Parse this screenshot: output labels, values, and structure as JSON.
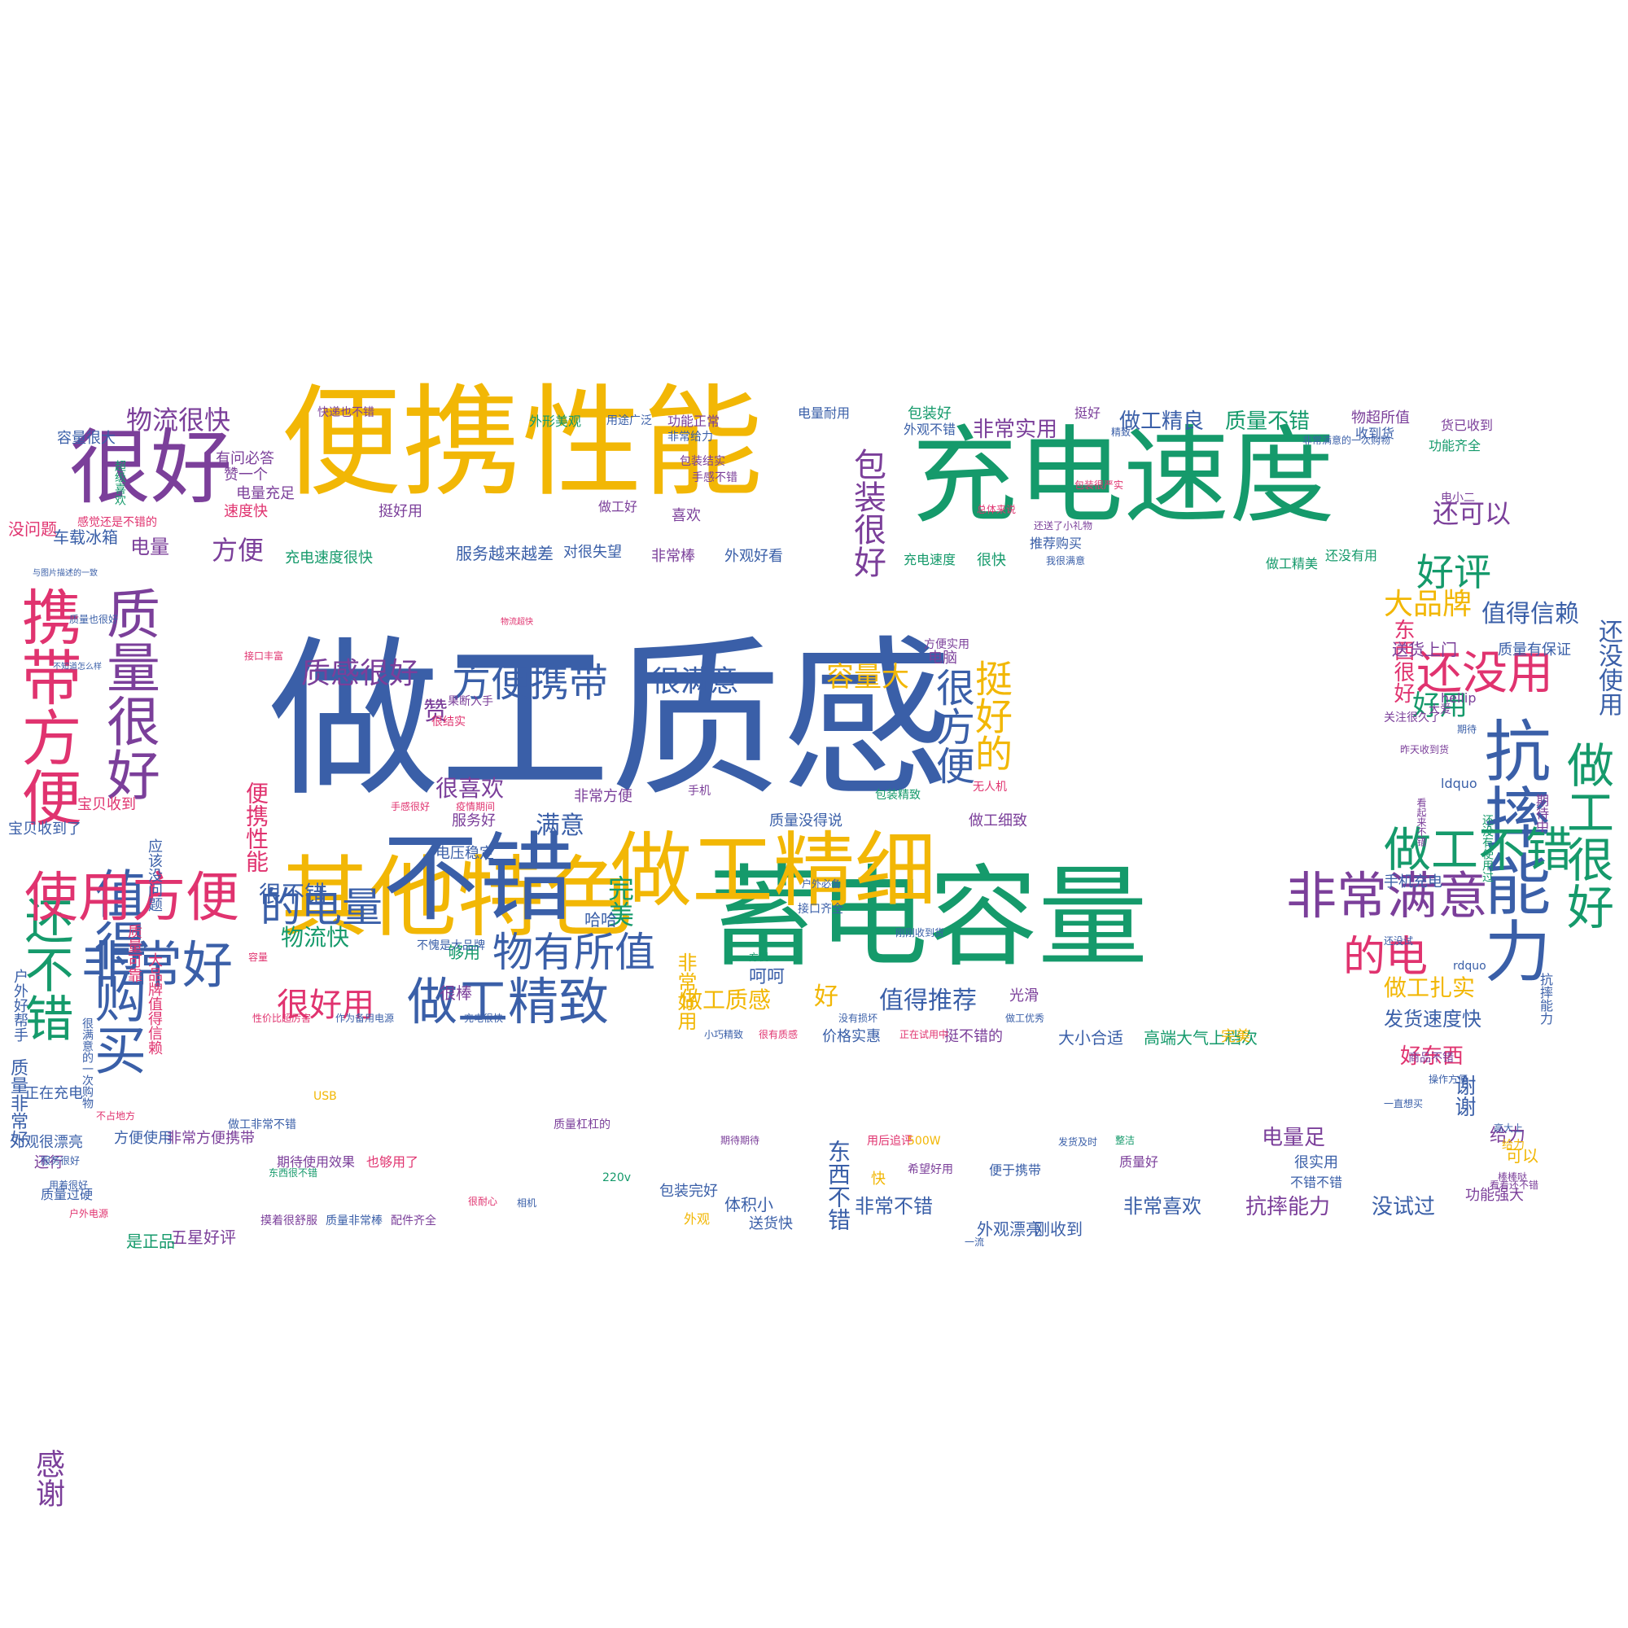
{
  "palette": {
    "yellow": "#f2b705",
    "blue": "#3a5fa8",
    "green": "#159a6b",
    "purple": "#7b3f9a",
    "pink": "#e0336f"
  },
  "words": [
    {
      "text": "做工质感",
      "color": "blue"
    },
    {
      "text": "便携性能",
      "color": "yellow"
    },
    {
      "text": "充电速度",
      "color": "green"
    },
    {
      "text": "蓄电容量",
      "color": "green"
    },
    {
      "text": "其他特色",
      "color": "yellow"
    },
    {
      "text": "不错",
      "color": "blue"
    },
    {
      "text": "做工精细",
      "color": "yellow"
    },
    {
      "text": "抗摔能力",
      "color": "blue"
    },
    {
      "text": "很好",
      "color": "purple"
    },
    {
      "text": "携带方便",
      "color": "pink"
    },
    {
      "text": "质量很好",
      "color": "purple"
    },
    {
      "text": "值得购买",
      "color": "blue"
    },
    {
      "text": "还不错",
      "color": "green"
    },
    {
      "text": "使用方便",
      "color": "pink"
    },
    {
      "text": "非常好",
      "color": "blue"
    },
    {
      "text": "做工精致",
      "color": "blue"
    },
    {
      "text": "非常满意",
      "color": "purple"
    },
    {
      "text": "做工很好",
      "color": "green"
    },
    {
      "text": "做工不错",
      "color": "green"
    },
    {
      "text": "还没用",
      "color": "pink"
    },
    {
      "text": "好评",
      "color": "green"
    },
    {
      "text": "包装很好",
      "color": "purple"
    },
    {
      "text": "很方便",
      "color": "blue"
    },
    {
      "text": "挺好的",
      "color": "yellow"
    },
    {
      "text": "的电量",
      "color": "blue"
    },
    {
      "text": "方便携带",
      "color": "blue"
    },
    {
      "text": "物有所值",
      "color": "blue"
    },
    {
      "text": "质感很好",
      "color": "purple"
    },
    {
      "text": "很满意",
      "color": "blue"
    },
    {
      "text": "容量大",
      "color": "yellow"
    },
    {
      "text": "的电",
      "color": "pink"
    },
    {
      "text": "很好用",
      "color": "pink"
    },
    {
      "text": "物流很快",
      "color": "purple"
    },
    {
      "text": "还可以",
      "color": "purple"
    },
    {
      "text": "大品牌",
      "color": "yellow"
    },
    {
      "text": "非常实用",
      "color": "purple"
    },
    {
      "text": "做工精良",
      "color": "blue"
    },
    {
      "text": "质量不错",
      "color": "green"
    },
    {
      "text": "值得推荐",
      "color": "blue"
    },
    {
      "text": "做工质感",
      "color": "yellow"
    },
    {
      "text": "好",
      "color": "yellow"
    },
    {
      "text": "完美",
      "color": "green"
    },
    {
      "text": "满意",
      "color": "blue"
    },
    {
      "text": "很喜欢",
      "color": "purple"
    },
    {
      "text": "便携性能",
      "color": "pink"
    },
    {
      "text": "很不错",
      "color": "blue"
    },
    {
      "text": "物流快",
      "color": "green"
    },
    {
      "text": "好用",
      "color": "green"
    },
    {
      "text": "值得信赖",
      "color": "blue"
    },
    {
      "text": "还没使用",
      "color": "blue"
    },
    {
      "text": "东西很好",
      "color": "pink"
    },
    {
      "text": "做工扎实",
      "color": "yellow"
    },
    {
      "text": "发货速度快",
      "color": "blue"
    },
    {
      "text": "好东西",
      "color": "pink"
    },
    {
      "text": "方便",
      "color": "purple"
    },
    {
      "text": "电量",
      "color": "purple"
    },
    {
      "text": "车载冰箱",
      "color": "blue"
    },
    {
      "text": "非常不错",
      "color": "blue"
    },
    {
      "text": "非常喜欢",
      "color": "blue"
    },
    {
      "text": "抗摔能力",
      "color": "purple"
    },
    {
      "text": "没试过",
      "color": "blue"
    },
    {
      "text": "感谢",
      "color": "purple"
    },
    {
      "text": "谢谢",
      "color": "blue"
    },
    {
      "text": "电量足",
      "color": "purple"
    },
    {
      "text": "非常好用",
      "color": "yellow"
    },
    {
      "text": "东西不错",
      "color": "blue"
    },
    {
      "text": "体积小",
      "color": "blue"
    },
    {
      "text": "外观漂亮",
      "color": "blue"
    },
    {
      "text": "包装完好",
      "color": "blue"
    },
    {
      "text": "五星好评",
      "color": "purple"
    },
    {
      "text": "是正品",
      "color": "green"
    },
    {
      "text": "服务越来越差",
      "color": "blue"
    },
    {
      "text": "对很失望",
      "color": "blue"
    },
    {
      "text": "推荐购买",
      "color": "blue"
    },
    {
      "text": "充电速度很快",
      "color": "green"
    },
    {
      "text": "大小合适",
      "color": "blue"
    },
    {
      "text": "高端大气上档次",
      "color": "green"
    },
    {
      "text": "价格实惠",
      "color": "blue"
    },
    {
      "text": "挺不错的",
      "color": "purple"
    },
    {
      "text": "电压稳定",
      "color": "blue"
    },
    {
      "text": "非常方便",
      "color": "purple"
    },
    {
      "text": "服务好",
      "color": "purple"
    },
    {
      "text": "够用",
      "color": "green"
    },
    {
      "text": "很棒",
      "color": "purple"
    },
    {
      "text": "光滑",
      "color": "purple"
    },
    {
      "text": "做工细致",
      "color": "purple"
    },
    {
      "text": "电脑",
      "color": "purple"
    },
    {
      "text": "手机充电",
      "color": "blue"
    },
    {
      "text": "送货上门",
      "color": "purple"
    },
    {
      "text": "质量有保证",
      "color": "blue"
    },
    {
      "text": "呵呵",
      "color": "blue"
    },
    {
      "text": "哈哈",
      "color": "blue"
    },
    {
      "text": "赞",
      "color": "purple"
    },
    {
      "text": "刚收到",
      "color": "blue"
    },
    {
      "text": "给力",
      "color": "purple"
    },
    {
      "text": "可以",
      "color": "yellow"
    },
    {
      "text": "功能强大",
      "color": "purple"
    },
    {
      "text": "没问题",
      "color": "pink"
    },
    {
      "text": "有问必答",
      "color": "purple"
    },
    {
      "text": "速度快",
      "color": "pink"
    },
    {
      "text": "赞一个",
      "color": "purple"
    },
    {
      "text": "电量充足",
      "color": "purple"
    },
    {
      "text": "容量很大",
      "color": "blue"
    },
    {
      "text": "包装好",
      "color": "green"
    },
    {
      "text": "挺好用",
      "color": "purple"
    },
    {
      "text": "快递也不错",
      "color": "purple"
    },
    {
      "text": "外形美观",
      "color": "green"
    },
    {
      "text": "用途广泛",
      "color": "blue"
    },
    {
      "text": "功能正常",
      "color": "purple"
    },
    {
      "text": "电量耐用",
      "color": "blue"
    },
    {
      "text": "外观不错",
      "color": "blue"
    },
    {
      "text": "挺好",
      "color": "purple"
    },
    {
      "text": "物超所值",
      "color": "purple"
    },
    {
      "text": "收到货",
      "color": "blue"
    },
    {
      "text": "货已收到",
      "color": "purple"
    },
    {
      "text": "功能齐全",
      "color": "green"
    },
    {
      "text": "非常给力",
      "color": "blue"
    },
    {
      "text": "手感不错",
      "color": "purple"
    },
    {
      "text": "包装结实",
      "color": "purple"
    },
    {
      "text": "喜欢",
      "color": "purple"
    },
    {
      "text": "做工好",
      "color": "purple"
    },
    {
      "text": "非常棒",
      "color": "purple"
    },
    {
      "text": "外观好看",
      "color": "blue"
    },
    {
      "text": "还没有用",
      "color": "green"
    },
    {
      "text": "做工精美",
      "color": "green"
    },
    {
      "text": "充电速度",
      "color": "green"
    },
    {
      "text": "很快",
      "color": "green"
    },
    {
      "text": "期待中",
      "color": "purple"
    },
    {
      "text": "抗摔能力",
      "color": "blue"
    },
    {
      "text": "还行",
      "color": "purple"
    },
    {
      "text": "质量过硬",
      "color": "blue"
    },
    {
      "text": "户外电源",
      "color": "pink"
    },
    {
      "text": "正在充电",
      "color": "blue"
    },
    {
      "text": "宝贝收到",
      "color": "pink"
    },
    {
      "text": "宝贝收到了",
      "color": "blue"
    },
    {
      "text": "质量非常好",
      "color": "blue"
    },
    {
      "text": "户外好帮手",
      "color": "blue"
    },
    {
      "text": "外观很漂亮",
      "color": "blue"
    },
    {
      "text": "大品牌值得信赖",
      "color": "pink"
    },
    {
      "text": "质量可靠",
      "color": "pink"
    },
    {
      "text": "应该没问题",
      "color": "blue"
    },
    {
      "text": "方便使用",
      "color": "blue"
    },
    {
      "text": "非常方便携带",
      "color": "purple"
    },
    {
      "text": "做工非常不错",
      "color": "blue"
    },
    {
      "text": "质量杠杠的",
      "color": "purple"
    },
    {
      "text": "期待使用效果",
      "color": "purple"
    },
    {
      "text": "也够用了",
      "color": "pink"
    },
    {
      "text": "便于携带",
      "color": "blue"
    },
    {
      "text": "希望好用",
      "color": "purple"
    },
    {
      "text": "很实用",
      "color": "blue"
    },
    {
      "text": "不错不错",
      "color": "blue"
    },
    {
      "text": "接口丰富",
      "color": "pink"
    },
    {
      "text": "接口齐全",
      "color": "blue"
    },
    {
      "text": "户外必备",
      "color": "blue"
    },
    {
      "text": "无人机",
      "color": "pink"
    },
    {
      "text": "手机",
      "color": "purple"
    },
    {
      "text": "很结实",
      "color": "pink"
    },
    {
      "text": "果断入手",
      "color": "purple"
    },
    {
      "text": "不愧是大品牌",
      "color": "blue"
    },
    {
      "text": "没有损坏",
      "color": "blue"
    },
    {
      "text": "做工优秀",
      "color": "blue"
    },
    {
      "text": "充电很快",
      "color": "blue"
    },
    {
      "text": "作为备用电源",
      "color": "blue"
    },
    {
      "text": "性价比超厉害",
      "color": "pink"
    },
    {
      "text": "包装精致",
      "color": "green"
    },
    {
      "text": "疫情期间",
      "color": "pink"
    },
    {
      "text": "手感很好",
      "color": "pink"
    },
    {
      "text": "方便实用",
      "color": "purple"
    },
    {
      "text": "容量",
      "color": "pink"
    },
    {
      "text": "方便",
      "color": "green"
    },
    {
      "text": "服务很好",
      "color": "blue"
    },
    {
      "text": "不占地方",
      "color": "pink"
    },
    {
      "text": "用着很好",
      "color": "blue"
    },
    {
      "text": "送货快",
      "color": "blue"
    },
    {
      "text": "快",
      "color": "yellow"
    },
    {
      "text": "外观",
      "color": "yellow"
    },
    {
      "text": "刚刚收到货",
      "color": "blue"
    },
    {
      "text": "质量没得说",
      "color": "blue"
    },
    {
      "text": "质量好",
      "color": "purple"
    },
    {
      "text": "大爱",
      "color": "purple"
    },
    {
      "text": "期待",
      "color": "blue"
    },
    {
      "text": "hellip",
      "color": "purple"
    },
    {
      "text": "ldquo",
      "color": "blue"
    },
    {
      "text": "rdquo",
      "color": "blue"
    },
    {
      "text": "关注很久了",
      "color": "purple"
    },
    {
      "text": "昨天收到货",
      "color": "purple"
    },
    {
      "text": "还没有使用过",
      "color": "green"
    },
    {
      "text": "商品不错",
      "color": "purple"
    },
    {
      "text": "操作方便",
      "color": "blue"
    },
    {
      "text": "看起来不错",
      "color": "purple"
    },
    {
      "text": "电小二",
      "color": "purple"
    },
    {
      "text": "220v",
      "color": "green"
    },
    {
      "text": "500W",
      "color": "yellow"
    },
    {
      "text": "USB",
      "color": "yellow"
    },
    {
      "text": "正在试用中",
      "color": "pink"
    },
    {
      "text": "东西很不错",
      "color": "green"
    },
    {
      "text": "用后追评",
      "color": "pink"
    },
    {
      "text": "物流超快",
      "color": "pink"
    },
    {
      "text": "还送了小礼物",
      "color": "purple"
    },
    {
      "text": "期待期待",
      "color": "purple"
    },
    {
      "text": "发货及时",
      "color": "blue"
    },
    {
      "text": "整洁",
      "color": "green"
    },
    {
      "text": "精致",
      "color": "blue"
    },
    {
      "text": "包装很严实",
      "color": "pink"
    },
    {
      "text": "总体来说",
      "color": "pink"
    },
    {
      "text": "我很满意",
      "color": "blue"
    },
    {
      "text": "非常满意的一次购物",
      "color": "blue"
    },
    {
      "text": "感觉还是不错的",
      "color": "pink"
    },
    {
      "text": "质量也很好",
      "color": "blue"
    },
    {
      "text": "与图片描述的一致",
      "color": "blue"
    },
    {
      "text": "不知道怎么样",
      "color": "blue"
    },
    {
      "text": "很满意的一次购物",
      "color": "blue"
    },
    {
      "text": "超级喜欢",
      "color": "green"
    },
    {
      "text": "完美",
      "color": "yellow"
    },
    {
      "text": "高大上",
      "color": "blue"
    },
    {
      "text": "棒棒哒",
      "color": "purple"
    },
    {
      "text": "给力",
      "color": "yellow"
    },
    {
      "text": "一直想买",
      "color": "blue"
    },
    {
      "text": "看着还不错",
      "color": "purple"
    },
    {
      "text": "还没试",
      "color": "blue"
    },
    {
      "text": "小巧精致",
      "color": "blue"
    },
    {
      "text": "很有质感",
      "color": "pink"
    },
    {
      "text": "相机",
      "color": "blue"
    },
    {
      "text": "很耐心",
      "color": "pink"
    },
    {
      "text": "摸着很舒服",
      "color": "purple"
    },
    {
      "text": "质量非常棒",
      "color": "blue"
    },
    {
      "text": "配件齐全",
      "color": "purple"
    },
    {
      "text": "一流",
      "color": "blue"
    }
  ]
}
